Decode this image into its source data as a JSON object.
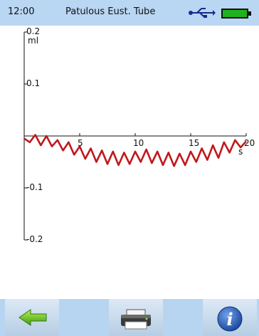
{
  "status_bar": {
    "time": "12:00",
    "title": "Patulous Eust. Tube",
    "icons": [
      "usb-icon",
      "battery-icon"
    ],
    "battery_color": "#1fb21f"
  },
  "toolbar": {
    "buttons": [
      "back-arrow-icon",
      "printer-icon",
      "info-icon"
    ]
  },
  "chart_data": {
    "type": "line",
    "y_unit": "ml",
    "x_unit": "s",
    "ylim": [
      -0.2,
      0.2
    ],
    "xlim": [
      0,
      20
    ],
    "y_ticks": [
      "0.2",
      "0.1",
      "-0.1",
      "-0.2"
    ],
    "x_ticks": [
      "5",
      "10",
      "15",
      "20"
    ],
    "series": [
      {
        "color": "#c0181c",
        "x": [
          0,
          0.5,
          1,
          1.5,
          2,
          2.5,
          3,
          3.5,
          4,
          4.5,
          5,
          5.5,
          6,
          6.5,
          7,
          7.5,
          8,
          8.5,
          9,
          9.5,
          10,
          10.5,
          11,
          11.5,
          12,
          12.5,
          13,
          13.5,
          14,
          14.5,
          15,
          15.5,
          16,
          16.5,
          17,
          17.5,
          18,
          18.5,
          19,
          19.5,
          20
        ],
        "y": [
          -0.005,
          -0.012,
          0.002,
          -0.018,
          0.0,
          -0.02,
          -0.008,
          -0.028,
          -0.012,
          -0.036,
          -0.02,
          -0.044,
          -0.024,
          -0.05,
          -0.028,
          -0.054,
          -0.03,
          -0.056,
          -0.032,
          -0.054,
          -0.03,
          -0.05,
          -0.026,
          -0.052,
          -0.03,
          -0.056,
          -0.032,
          -0.058,
          -0.034,
          -0.056,
          -0.03,
          -0.05,
          -0.024,
          -0.046,
          -0.018,
          -0.042,
          -0.012,
          -0.032,
          -0.008,
          -0.022,
          -0.01
        ]
      }
    ]
  }
}
